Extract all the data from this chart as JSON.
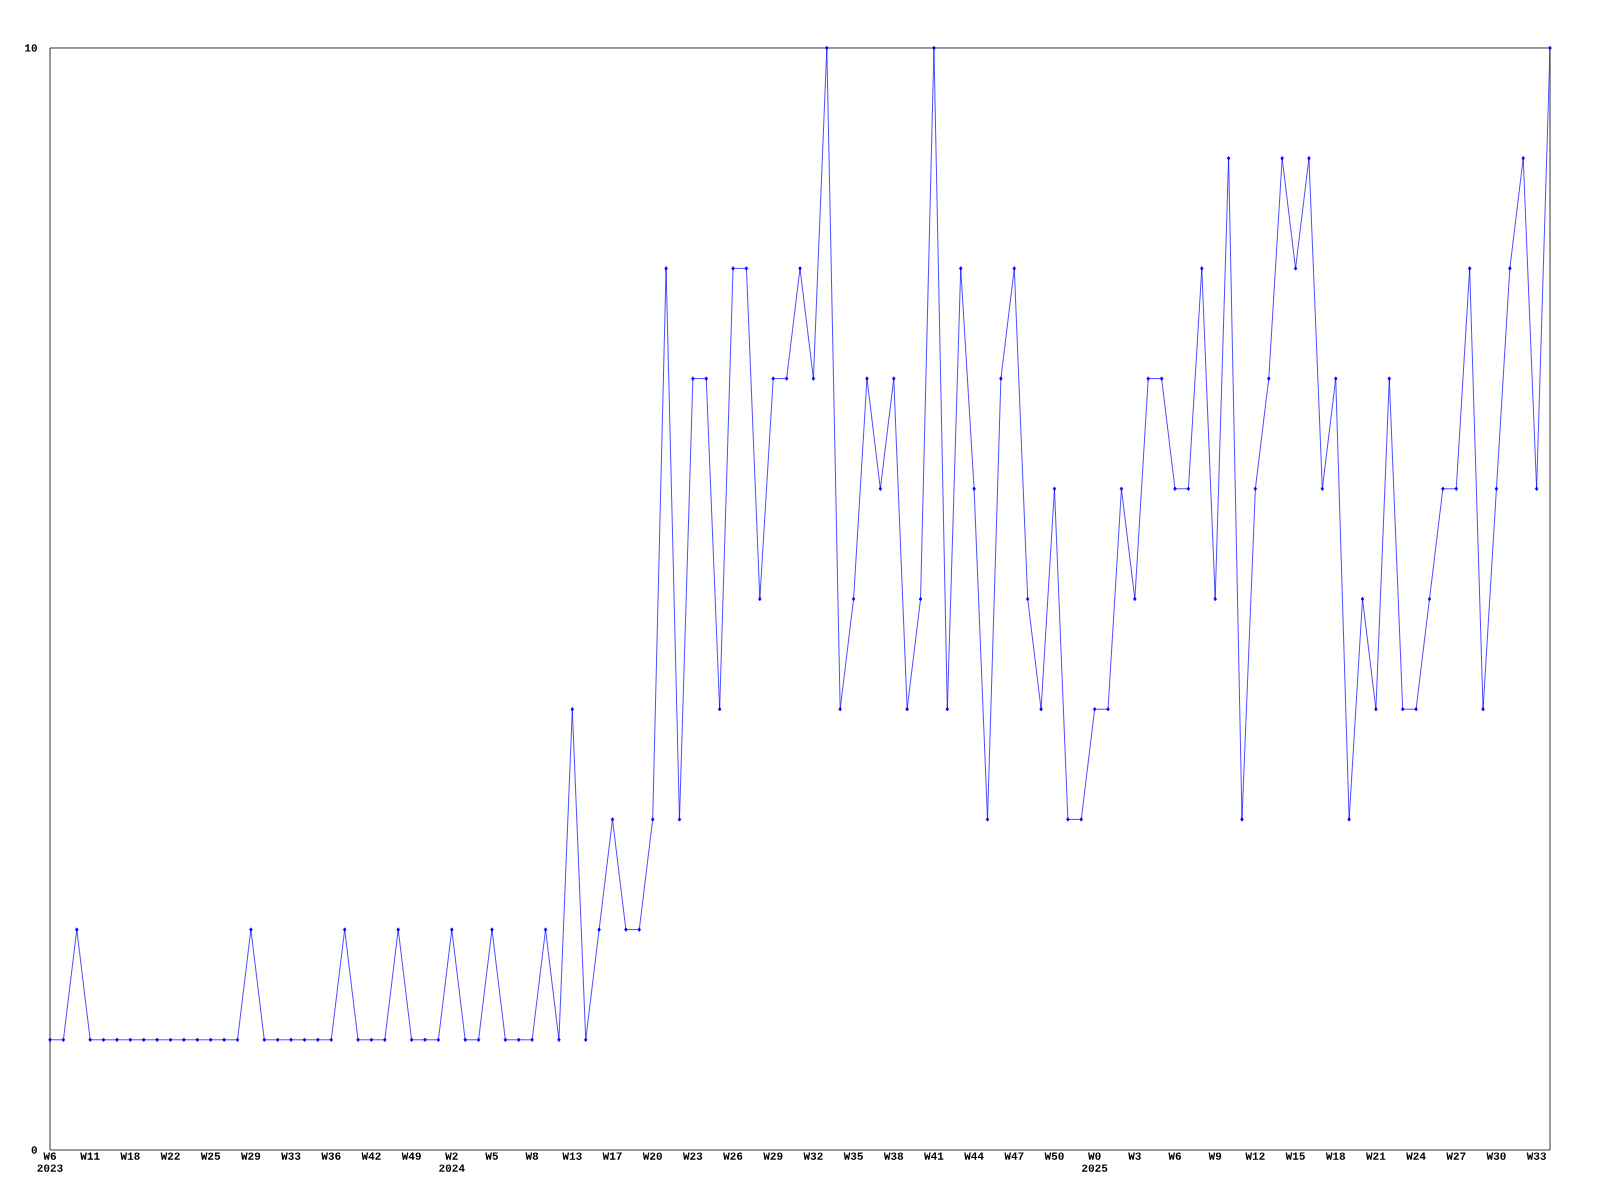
{
  "chart_data": {
    "type": "line",
    "color": "#0000ff",
    "marker": "diamond",
    "categories": [
      "W6 2023",
      null,
      null,
      "W11",
      null,
      null,
      "W18",
      null,
      null,
      "W22",
      null,
      null,
      "W25",
      null,
      null,
      "W29",
      null,
      null,
      "W33",
      null,
      null,
      "W36",
      null,
      null,
      "W42",
      null,
      null,
      "W49",
      null,
      null,
      "W2 2024",
      null,
      null,
      "W5",
      null,
      null,
      "W8",
      null,
      null,
      "W13",
      null,
      null,
      "W17",
      null,
      null,
      "W20",
      null,
      null,
      "W23",
      null,
      null,
      "W26",
      null,
      null,
      "W29",
      null,
      null,
      "W32",
      null,
      null,
      "W35",
      null,
      null,
      "W38",
      null,
      null,
      "W41",
      null,
      null,
      "W44",
      null,
      null,
      "W47",
      null,
      null,
      "W50",
      null,
      null,
      "W0 2025",
      null,
      null,
      "W3",
      null,
      null,
      "W6",
      null,
      null,
      "W9",
      null,
      null,
      "W12",
      null,
      null,
      "W15",
      null,
      null,
      "W18",
      null,
      null,
      "W21",
      null,
      null,
      "W24",
      null,
      null,
      "W27",
      null,
      null,
      "W30",
      null,
      null,
      "W33",
      null
    ],
    "values": [
      1,
      1,
      2,
      1,
      1,
      1,
      1,
      1,
      1,
      1,
      1,
      1,
      1,
      1,
      1,
      2,
      1,
      1,
      1,
      1,
      1,
      1,
      2,
      1,
      1,
      1,
      2,
      1,
      1,
      1,
      2,
      1,
      1,
      2,
      1,
      1,
      1,
      2,
      1,
      4,
      1,
      2,
      3,
      2,
      2,
      3,
      8,
      3,
      7,
      7,
      4,
      8,
      8,
      5,
      7,
      7,
      8,
      7,
      10,
      4,
      5,
      7,
      6,
      7,
      4,
      5,
      10,
      4,
      8,
      6,
      3,
      7,
      8,
      5,
      4,
      6,
      3,
      3,
      4,
      4,
      6,
      5,
      7,
      7,
      6,
      6,
      8,
      5,
      9,
      3,
      6,
      7,
      9,
      8,
      9,
      6,
      7,
      3,
      5,
      4,
      7,
      4,
      4,
      5,
      6,
      6,
      8,
      4,
      6,
      8,
      9,
      6,
      10
    ],
    "ylim": [
      0,
      10
    ],
    "yticks": [
      0,
      10
    ]
  }
}
